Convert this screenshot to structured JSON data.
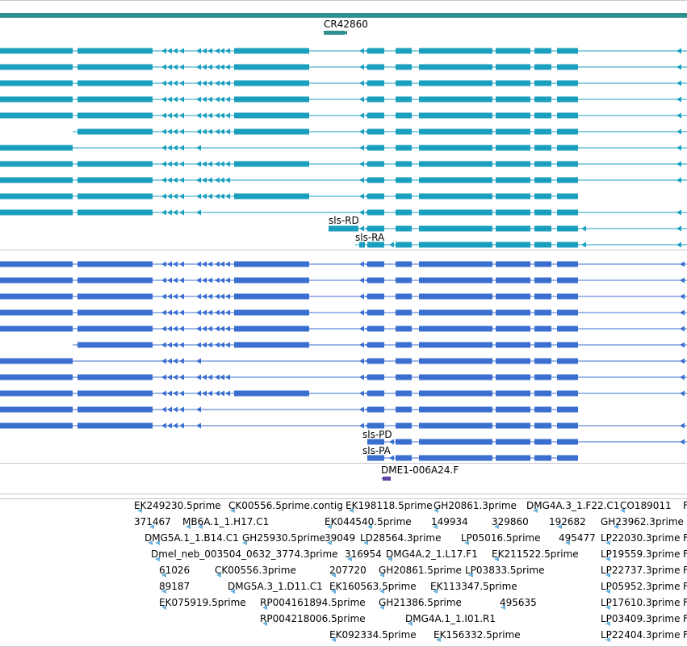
{
  "colors": {
    "gene_bar": "#2e8f8f",
    "transcript_cyan": "#1a9fbf",
    "transcript_blue": "#3a6fd0",
    "other_purple": "#6040a0",
    "est_arrow": "#6bb2dd",
    "separator": "#c8c8c8"
  },
  "labels": {
    "ncrna": "CR42860",
    "sls_rd": "sls-RD",
    "sls_ra": "sls-RA",
    "sls_pd": "sls-PD",
    "sls_pa": "sls-PA",
    "dme": "DME1-006A24.F"
  },
  "ests": [
    "EK249230.5prime",
    "CK00556.5prime.contig",
    "EK198118.5prime",
    "GH20861.3prime",
    "DMG4A.3_1.F22.C1",
    "CO189011",
    "F",
    "371467",
    "MB6A.1_1.H17.C1",
    "EK044540.5prime",
    "149934",
    "329860",
    "192682",
    "GH23962.3prime",
    "DMG5A.1_1.B14.C1",
    "GH25930.5prime",
    "39049",
    "LD28564.3prime",
    "LP05016.5prime",
    "495477",
    "LP22030.3prime",
    "F",
    "Dmel_neb_003504_0632_3774.3prime",
    "316954",
    "DMG4A.2_1.L17.F1",
    "EK211522.5prime",
    "LP19559.3prime",
    "F",
    "61026",
    "CK00556.3prime",
    "207720",
    "GH20861.5prime",
    "LP03833.5prime",
    "LP22737.3prime",
    "F",
    "89187",
    "DMG5A.3_1.D11.C1",
    "EK160563.5prime",
    "EK113347.5prime",
    "LP05952.3prime",
    "F",
    "EK075919.5prime",
    "RP004161894.5prime",
    "GH21386.5prime",
    "495635",
    "LP17610.3prime",
    "F",
    "RP004218006.5prime",
    "DMG4A.1_1.I01.R1",
    "LP03409.3prime",
    "F",
    "EK092334.5prime",
    "EK156332.5prime",
    "LP22404.3prime",
    "F"
  ]
}
